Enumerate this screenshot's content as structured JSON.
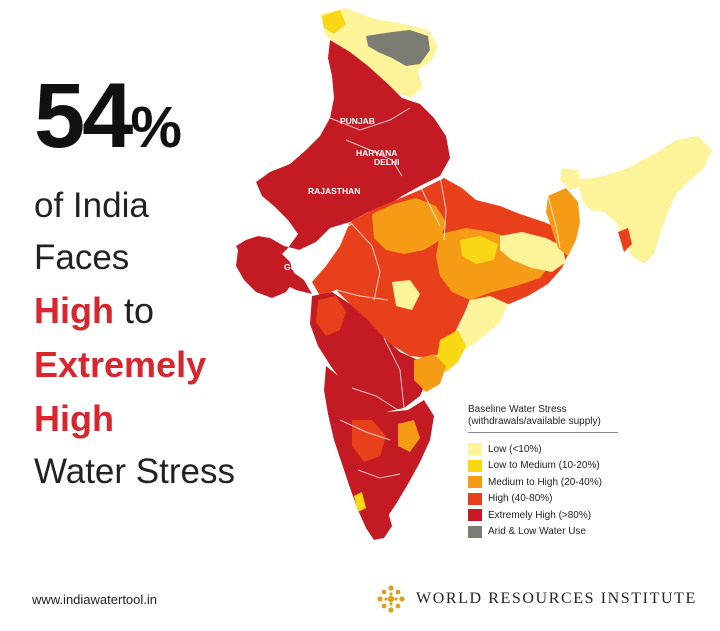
{
  "headline": {
    "stat": "54",
    "percent_sign": "%",
    "line1": "of India",
    "line2": "Faces",
    "line3_highlight": "High",
    "line3_rest": " to",
    "line4_highlight": "Extremely",
    "line5_highlight": "High",
    "line6": "Water Stress"
  },
  "map": {
    "state_labels": [
      "PUNJAB",
      "HARYANA",
      "DELHI",
      "RAJASTHAN",
      "GUJARAT"
    ]
  },
  "legend": {
    "title_line1": "Baseline Water Stress",
    "title_line2": "(withdrawals/available supply)",
    "items": [
      {
        "label": "Low (<10%)",
        "color": "#fdf49a"
      },
      {
        "label": "Low to Medium (10-20%)",
        "color": "#f8d715"
      },
      {
        "label": "Medium to High (20-40%)",
        "color": "#f59b16"
      },
      {
        "label": "High (40-80%)",
        "color": "#e9401c"
      },
      {
        "label": "Extremely High (>80%)",
        "color": "#c41a24"
      },
      {
        "label": "Arid & Low Water Use",
        "color": "#7c7c74"
      }
    ]
  },
  "colors": {
    "accent_red": "#d7262e",
    "low": "#fdf49a",
    "low_medium": "#f8d715",
    "medium_high": "#f59b16",
    "high": "#e9401c",
    "extremely_high": "#c41a24",
    "arid": "#7c7c74"
  },
  "footer": {
    "url": "www.indiawatertool.in",
    "org": "WORLD RESOURCES INSTITUTE",
    "logo_icon": "wri-logo-icon"
  }
}
